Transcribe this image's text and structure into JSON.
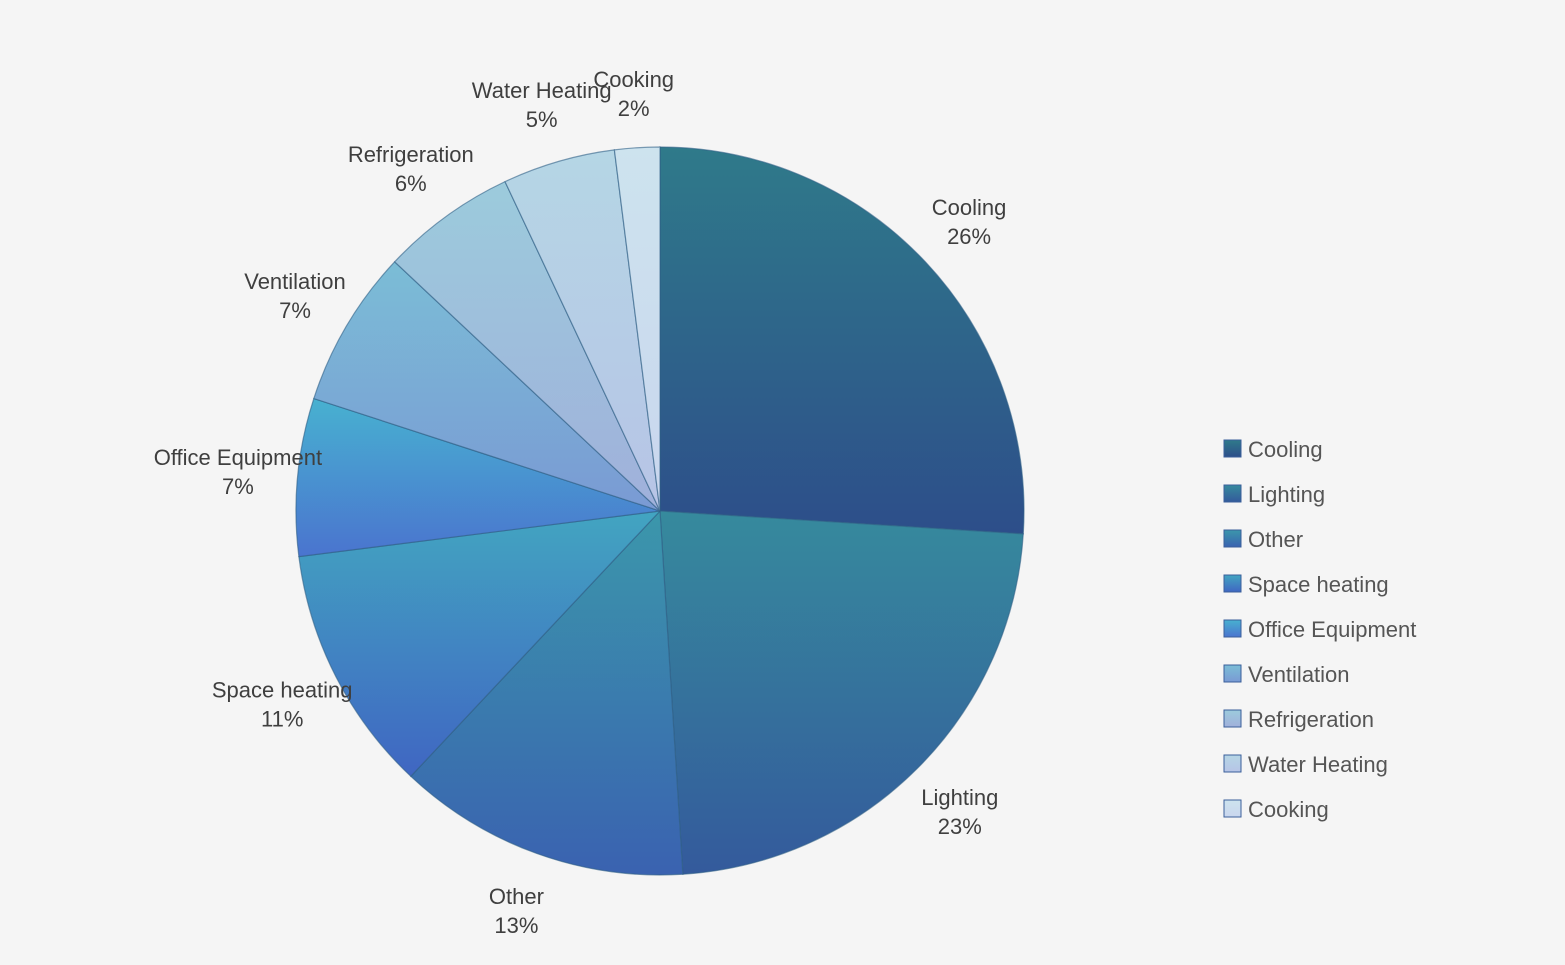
{
  "chart_data": {
    "type": "pie",
    "legend_position": "right",
    "slices": [
      {
        "name": "Cooling",
        "value": 26,
        "label": "26%",
        "color_top": "#2f7a8a",
        "color_bottom": "#2d4e8a"
      },
      {
        "name": "Lighting",
        "value": 23,
        "label": "23%",
        "color_top": "#368a9d",
        "color_bottom": "#345a9c"
      },
      {
        "name": "Other",
        "value": 13,
        "label": "13%",
        "color_top": "#3b97ab",
        "color_bottom": "#3a62b0"
      },
      {
        "name": "Space heating",
        "value": 11,
        "label": "11%",
        "color_top": "#42a5c1",
        "color_bottom": "#4066c2"
      },
      {
        "name": "Office Equipment",
        "value": 7,
        "label": "7%",
        "color_top": "#48b1d0",
        "color_bottom": "#4a74cf"
      },
      {
        "name": "Ventilation",
        "value": 7,
        "label": "7%",
        "color_top": "#7bbdd6",
        "color_bottom": "#7a9ad4"
      },
      {
        "name": "Refrigeration",
        "value": 6,
        "label": "6%",
        "color_top": "#9ccbdc",
        "color_bottom": "#a0b0db"
      },
      {
        "name": "Water Heating",
        "value": 5,
        "label": "5%",
        "color_top": "#b5d6e5",
        "color_bottom": "#b7c4e6"
      },
      {
        "name": "Cooking",
        "value": 2,
        "label": "2%",
        "color_top": "#cde3ee",
        "color_bottom": "#c9d6ee"
      }
    ]
  }
}
